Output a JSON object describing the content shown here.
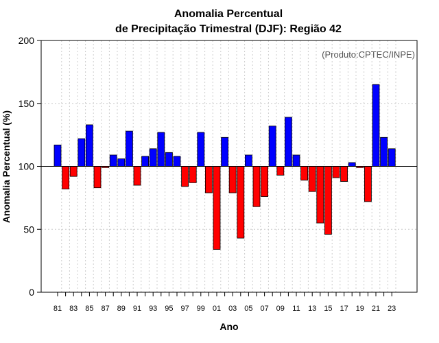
{
  "chart_data": {
    "type": "bar",
    "title_line1": "Anomalia Percentual",
    "title_line2": "de Precipitação Trimestral (DJF): Região 42",
    "xlabel": "Ano",
    "ylabel": "Anomalia Percentual (%)",
    "annotation": "(Produto:CPTEC/INPE)",
    "baseline": 100,
    "ylim": [
      0,
      200
    ],
    "yticks": [
      0,
      50,
      100,
      150,
      200
    ],
    "xtick_labels": [
      "81",
      "83",
      "85",
      "87",
      "89",
      "91",
      "93",
      "95",
      "97",
      "99",
      "01",
      "03",
      "05",
      "07",
      "09",
      "11",
      "13",
      "15",
      "17",
      "19",
      "21",
      "23"
    ],
    "grid": true,
    "colors": {
      "above": "#0000ff",
      "below": "#ff0000",
      "edge": "#000000",
      "grid": "#cccccc"
    },
    "categories": [
      "81",
      "82",
      "83",
      "84",
      "85",
      "86",
      "87",
      "88",
      "89",
      "90",
      "91",
      "92",
      "93",
      "94",
      "95",
      "96",
      "97",
      "98",
      "99",
      "00",
      "01",
      "02",
      "03",
      "04",
      "05",
      "06",
      "07",
      "08",
      "09",
      "10",
      "11",
      "12",
      "13",
      "14",
      "15",
      "16",
      "17",
      "18",
      "19",
      "20",
      "21",
      "22",
      "23"
    ],
    "values": [
      117,
      82,
      92,
      122,
      133,
      83,
      99,
      109,
      106,
      128,
      85,
      108,
      114,
      127,
      111,
      108,
      84,
      87,
      127,
      79,
      34,
      123,
      79,
      43,
      109,
      68,
      76,
      132,
      93,
      139,
      109,
      89,
      80,
      55,
      46,
      91,
      88,
      103,
      99,
      72,
      165,
      123,
      114
    ]
  }
}
